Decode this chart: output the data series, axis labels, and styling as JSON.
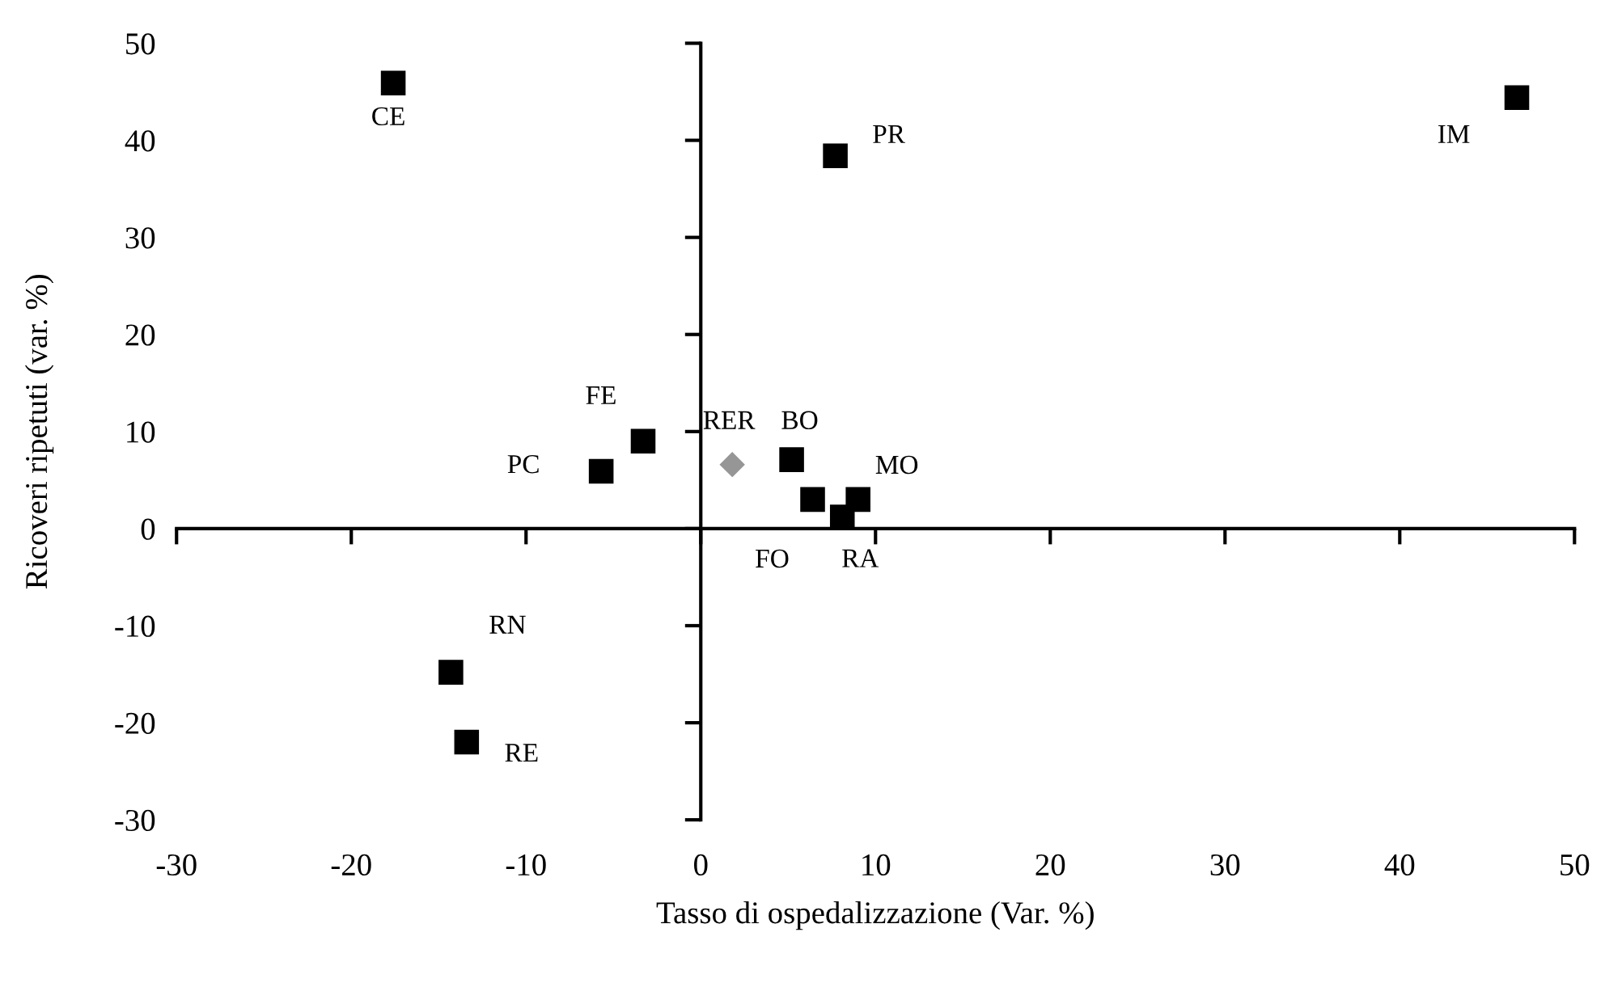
{
  "chart_data": {
    "type": "scatter",
    "xlabel": "Tasso di ospedalizzazione (Var. %)",
    "ylabel": "Ricoveri ripetuti (var. %)",
    "xlim": [
      -30,
      50
    ],
    "xticks": [
      -30,
      -20,
      -10,
      0,
      10,
      20,
      30,
      40,
      50
    ],
    "ylim": [
      -30,
      50
    ],
    "yticks": [
      -30,
      -20,
      -10,
      0,
      10,
      20,
      30,
      40,
      50
    ],
    "legend": false,
    "series": [
      {
        "color": "#000000",
        "marker": "square",
        "x": [
          -17.6,
          7.7,
          46.7,
          -3.3,
          -5.7,
          5.2,
          6.4,
          9.0,
          8.1,
          -14.3,
          -13.4
        ],
        "values": [
          45.9,
          38.4,
          44.4,
          9.0,
          5.9,
          7.1,
          3.0,
          3.0,
          1.2,
          -14.8,
          -22.0
        ]
      },
      {
        "color": "#969696",
        "marker": "diamond",
        "x": [
          1.8
        ],
        "values": [
          6.6
        ]
      }
    ],
    "annotations": [
      {
        "text": "CE",
        "x": -17.6,
        "y": 45.9
      },
      {
        "text": "PR",
        "x": 7.7,
        "y": 38.4
      },
      {
        "text": "IM",
        "x": 46.7,
        "y": 44.4
      },
      {
        "text": "FE",
        "x": -3.3,
        "y": 9.0
      },
      {
        "text": "PC",
        "x": -5.7,
        "y": 5.9
      },
      {
        "text": "RER",
        "x": 1.8,
        "y": 6.6
      },
      {
        "text": "BO",
        "x": 5.2,
        "y": 7.1
      },
      {
        "text": "FO",
        "x": 6.4,
        "y": 3.0
      },
      {
        "text": "MO",
        "x": 9.0,
        "y": 3.0
      },
      {
        "text": "RA",
        "x": 8.1,
        "y": 1.2
      },
      {
        "text": "RN",
        "x": -14.3,
        "y": -14.8
      },
      {
        "text": "RE",
        "x": -13.4,
        "y": -22.0
      }
    ]
  }
}
